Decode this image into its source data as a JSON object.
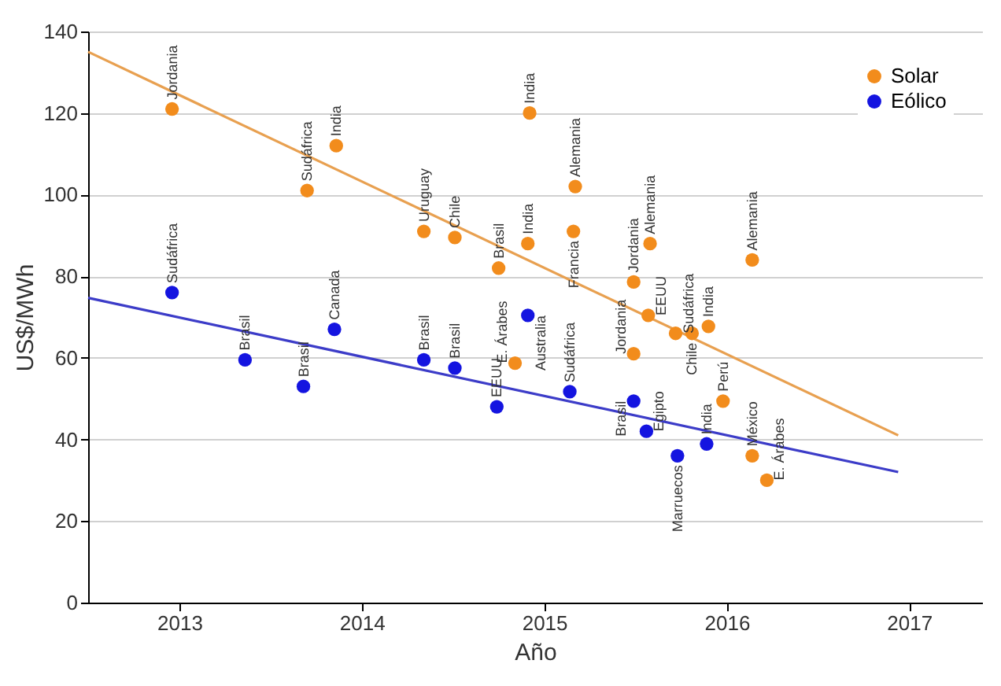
{
  "chart_data": {
    "type": "scatter",
    "xlabel": "Año",
    "ylabel": "US$/MWh",
    "xlim": [
      2012.5,
      2017.4
    ],
    "xticks": [
      2013,
      2014,
      2015,
      2016,
      2017
    ],
    "ylim": [
      0,
      140
    ],
    "yticks": [
      0,
      20,
      40,
      60,
      80,
      100,
      120,
      140
    ],
    "grid": "y",
    "legend": "top right",
    "marker": "circle",
    "series": [
      {
        "name": "Solar",
        "color": "#f28c1c",
        "type": "scatter",
        "x": [
          2012.96,
          2013.7,
          2013.86,
          2014.34,
          2014.51,
          2014.75,
          2014.84,
          2014.91,
          2014.92,
          2015.16,
          2015.17,
          2015.49,
          2015.49,
          2015.58,
          2015.57,
          2015.72,
          2015.81,
          2015.9,
          2015.98,
          2016.14,
          2016.22,
          2016.14
        ],
        "values": [
          121,
          101,
          112,
          91,
          89.5,
          82,
          58.7,
          88,
          120,
          91,
          102,
          78.6,
          61,
          88,
          70.4,
          66,
          66,
          67.7,
          49.4,
          36,
          30,
          84
        ]
      },
      {
        "name": "Eólico",
        "color": "#1414e0",
        "type": "scatter",
        "x": [
          2012.96,
          2013.36,
          2013.68,
          2013.85,
          2014.34,
          2014.51,
          2014.74,
          2014.91,
          2015.14,
          2015.49,
          2015.56,
          2015.73,
          2015.89
        ],
        "values": [
          76,
          59.5,
          53,
          67,
          59.5,
          57.5,
          48,
          70.4,
          51.7,
          49.4,
          42,
          36,
          38.9
        ]
      },
      {
        "color": "#e8a050",
        "type": "line",
        "marker": "none",
        "x": [
          2012.5,
          2016.94
        ],
        "values": [
          135,
          41
        ]
      },
      {
        "color": "#3c3cc8",
        "type": "line",
        "marker": "none",
        "x": [
          2012.5,
          2016.94
        ],
        "values": [
          74.7,
          32
        ]
      }
    ],
    "annotations": [
      {
        "text": "Jordania",
        "x": 2012.96,
        "y": 121
      },
      {
        "text": "Sudáfrica",
        "x": 2013.7,
        "y": 101
      },
      {
        "text": "India",
        "x": 2013.86,
        "y": 112
      },
      {
        "text": "Uruguay",
        "x": 2014.34,
        "y": 91
      },
      {
        "text": "Chile",
        "x": 2014.51,
        "y": 89.5
      },
      {
        "text": "Brasil",
        "x": 2014.75,
        "y": 82
      },
      {
        "text": "E. Árabes",
        "x": 2014.84,
        "y": 58.7
      },
      {
        "text": "India",
        "x": 2014.91,
        "y": 88
      },
      {
        "text": "India",
        "x": 2014.92,
        "y": 120
      },
      {
        "text": "Francia",
        "x": 2015.16,
        "y": 91
      },
      {
        "text": "Alemania",
        "x": 2015.17,
        "y": 102
      },
      {
        "text": "Jordania",
        "x": 2015.49,
        "y": 78.6
      },
      {
        "text": "Jordania",
        "x": 2015.49,
        "y": 61
      },
      {
        "text": "Alemania",
        "x": 2015.58,
        "y": 88
      },
      {
        "text": "EEUU",
        "x": 2015.57,
        "y": 70.4
      },
      {
        "text": "Sudáfrica",
        "x": 2015.72,
        "y": 66
      },
      {
        "text": "Chile",
        "x": 2015.81,
        "y": 66
      },
      {
        "text": "India",
        "x": 2015.9,
        "y": 67.7
      },
      {
        "text": "Perú",
        "x": 2015.98,
        "y": 49.4
      },
      {
        "text": "México",
        "x": 2016.14,
        "y": 36
      },
      {
        "text": "E. Árabes",
        "x": 2016.22,
        "y": 30
      },
      {
        "text": "Alemania",
        "x": 2016.14,
        "y": 84
      },
      {
        "text": "Sudáfrica",
        "x": 2012.96,
        "y": 76
      },
      {
        "text": "Brasil",
        "x": 2013.36,
        "y": 59.5
      },
      {
        "text": "Brasil",
        "x": 2013.68,
        "y": 53
      },
      {
        "text": "Canada",
        "x": 2013.85,
        "y": 67
      },
      {
        "text": "Brasil",
        "x": 2014.34,
        "y": 59.5
      },
      {
        "text": "Brasil",
        "x": 2014.51,
        "y": 57.5
      },
      {
        "text": "EEUU",
        "x": 2014.74,
        "y": 48
      },
      {
        "text": "Australia",
        "x": 2014.91,
        "y": 70.4
      },
      {
        "text": "Sudáfrica",
        "x": 2015.14,
        "y": 51.7
      },
      {
        "text": "Brasil",
        "x": 2015.49,
        "y": 49.4
      },
      {
        "text": "Egipto",
        "x": 2015.56,
        "y": 42
      },
      {
        "text": "Marruecos",
        "x": 2015.73,
        "y": 36
      },
      {
        "text": "India",
        "x": 2015.89,
        "y": 38.9
      }
    ]
  }
}
